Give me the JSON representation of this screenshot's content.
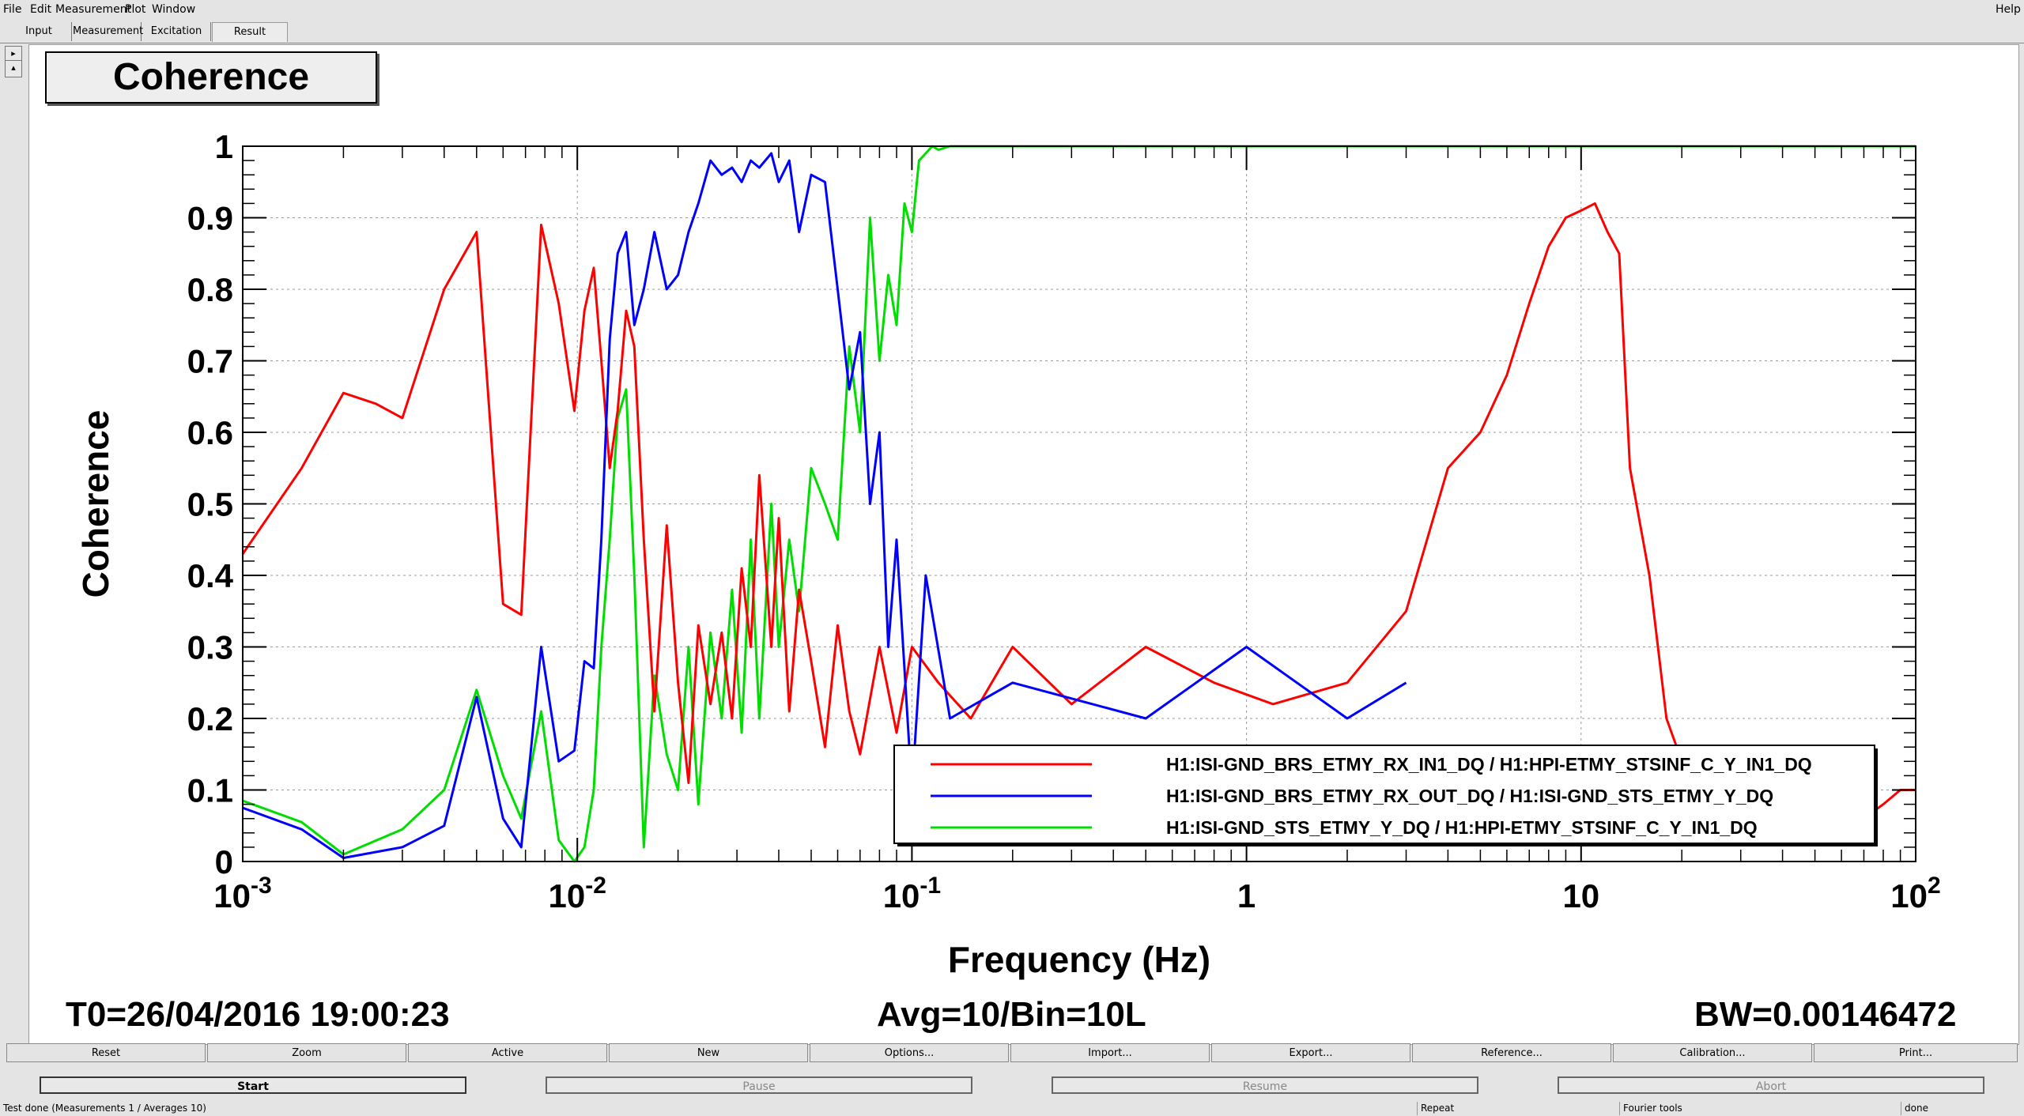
{
  "menu": {
    "file": "File",
    "edit": "Edit",
    "measurement": "Measurement",
    "plot": "Plot",
    "window": "Window",
    "help": "Help"
  },
  "tabs": [
    "Input",
    "Measurement",
    "Excitation",
    "Result"
  ],
  "left_buttons": [
    "▸",
    "▴"
  ],
  "plot_title": "Coherence",
  "chart_data": {
    "type": "line",
    "title": "Coherence",
    "xlabel": "Frequency (Hz)",
    "ylabel": "Coherence",
    "xscale": "log",
    "xlim": [
      0.001,
      100
    ],
    "ylim": [
      0,
      1
    ],
    "x_ticks": [
      {
        "value": 0.001,
        "base": "10",
        "exp": "-3"
      },
      {
        "value": 0.01,
        "base": "10",
        "exp": "-2"
      },
      {
        "value": 0.1,
        "base": "10",
        "exp": "-1"
      },
      {
        "value": 1,
        "base": "1",
        "exp": ""
      },
      {
        "value": 10,
        "base": "10",
        "exp": ""
      },
      {
        "value": 100,
        "base": "10",
        "exp": "2"
      }
    ],
    "y_ticks": [
      "0",
      "0.1",
      "0.2",
      "0.3",
      "0.4",
      "0.5",
      "0.6",
      "0.7",
      "0.8",
      "0.9",
      "1"
    ],
    "grid": true,
    "legend_position": "bottom-right",
    "series": [
      {
        "name": "H1:ISI-GND_BRS_ETMY_RX_IN1_DQ / H1:HPI-ETMY_STSINF_C_Y_IN1_DQ",
        "color": "#ff0000",
        "x": [
          0.001,
          0.0015,
          0.002,
          0.0025,
          0.003,
          0.004,
          0.005,
          0.006,
          0.0068,
          0.0078,
          0.0088,
          0.0098,
          0.0105,
          0.0112,
          0.0118,
          0.0125,
          0.0132,
          0.014,
          0.0148,
          0.0158,
          0.017,
          0.0185,
          0.02,
          0.0215,
          0.023,
          0.025,
          0.027,
          0.029,
          0.031,
          0.033,
          0.035,
          0.038,
          0.04,
          0.043,
          0.046,
          0.05,
          0.055,
          0.06,
          0.065,
          0.07,
          0.08,
          0.09,
          0.1,
          0.12,
          0.15,
          0.2,
          0.3,
          0.5,
          0.8,
          1.2,
          2,
          3,
          4,
          5,
          6,
          7,
          8,
          9,
          10,
          11,
          12,
          13,
          14,
          16,
          18,
          20,
          25,
          30,
          35,
          40,
          50,
          60,
          70,
          80,
          90,
          100
        ],
        "y": [
          0.43,
          0.55,
          0.655,
          0.64,
          0.62,
          0.8,
          0.88,
          0.36,
          0.345,
          0.89,
          0.78,
          0.63,
          0.77,
          0.83,
          0.7,
          0.55,
          0.63,
          0.77,
          0.72,
          0.45,
          0.21,
          0.47,
          0.25,
          0.11,
          0.33,
          0.22,
          0.32,
          0.2,
          0.41,
          0.3,
          0.54,
          0.3,
          0.48,
          0.21,
          0.38,
          0.28,
          0.16,
          0.33,
          0.21,
          0.15,
          0.3,
          0.18,
          0.3,
          0.25,
          0.2,
          0.3,
          0.22,
          0.3,
          0.25,
          0.22,
          0.25,
          0.35,
          0.55,
          0.6,
          0.68,
          0.78,
          0.86,
          0.9,
          0.91,
          0.92,
          0.88,
          0.85,
          0.55,
          0.4,
          0.2,
          0.14,
          0.08,
          0.08,
          0.05,
          0.04,
          0.05,
          0.05,
          0.06,
          0.08,
          0.1,
          0.1
        ]
      },
      {
        "name": "H1:ISI-GND_BRS_ETMY_RX_OUT_DQ / H1:ISI-GND_STS_ETMY_Y_DQ",
        "color": "#0000ff",
        "x": [
          0.001,
          0.0015,
          0.002,
          0.003,
          0.004,
          0.005,
          0.006,
          0.0068,
          0.0078,
          0.0088,
          0.0098,
          0.0105,
          0.0112,
          0.0118,
          0.0125,
          0.0132,
          0.014,
          0.0148,
          0.0158,
          0.017,
          0.0185,
          0.02,
          0.0215,
          0.023,
          0.025,
          0.027,
          0.029,
          0.031,
          0.033,
          0.035,
          0.038,
          0.04,
          0.043,
          0.046,
          0.05,
          0.055,
          0.06,
          0.065,
          0.07,
          0.075,
          0.08,
          0.085,
          0.09,
          0.1,
          0.11,
          0.13,
          0.2,
          0.5,
          1,
          2,
          3
        ],
        "y": [
          0.075,
          0.045,
          0.005,
          0.02,
          0.05,
          0.23,
          0.06,
          0.02,
          0.3,
          0.14,
          0.155,
          0.28,
          0.27,
          0.45,
          0.73,
          0.85,
          0.88,
          0.75,
          0.8,
          0.88,
          0.8,
          0.82,
          0.88,
          0.92,
          0.98,
          0.96,
          0.97,
          0.95,
          0.98,
          0.97,
          0.99,
          0.95,
          0.98,
          0.88,
          0.96,
          0.95,
          0.8,
          0.66,
          0.74,
          0.5,
          0.6,
          0.3,
          0.45,
          0.1,
          0.4,
          0.2,
          0.25,
          0.2,
          0.3,
          0.2,
          0.25
        ]
      },
      {
        "name": "H1:ISI-GND_STS_ETMY_Y_DQ / H1:HPI-ETMY_STSINF_C_Y_IN1_DQ",
        "color": "#00dd00",
        "x": [
          0.001,
          0.0015,
          0.002,
          0.003,
          0.004,
          0.005,
          0.006,
          0.0068,
          0.0078,
          0.0088,
          0.0098,
          0.0105,
          0.0112,
          0.0118,
          0.0125,
          0.0132,
          0.014,
          0.0148,
          0.0158,
          0.017,
          0.0185,
          0.02,
          0.0215,
          0.023,
          0.025,
          0.027,
          0.029,
          0.031,
          0.033,
          0.035,
          0.038,
          0.04,
          0.043,
          0.046,
          0.05,
          0.055,
          0.06,
          0.065,
          0.07,
          0.075,
          0.08,
          0.085,
          0.09,
          0.095,
          0.1,
          0.105,
          0.11,
          0.115,
          0.12,
          0.13,
          0.15,
          0.2,
          0.3,
          0.5,
          1,
          2,
          5,
          10,
          20,
          50,
          100
        ],
        "y": [
          0.085,
          0.055,
          0.01,
          0.045,
          0.1,
          0.24,
          0.12,
          0.06,
          0.21,
          0.03,
          0.0,
          0.02,
          0.1,
          0.3,
          0.45,
          0.62,
          0.66,
          0.4,
          0.02,
          0.26,
          0.15,
          0.1,
          0.3,
          0.08,
          0.32,
          0.2,
          0.38,
          0.18,
          0.45,
          0.2,
          0.5,
          0.3,
          0.45,
          0.35,
          0.55,
          0.5,
          0.45,
          0.72,
          0.6,
          0.9,
          0.7,
          0.82,
          0.75,
          0.92,
          0.88,
          0.98,
          0.99,
          1.0,
          0.995,
          1.0,
          1.0,
          1.0,
          1.0,
          1.0,
          1.0,
          1.0,
          1.0,
          1.0,
          1.0,
          1.0,
          1.0
        ]
      }
    ]
  },
  "footer": {
    "t0": "T0=26/04/2016 19:00:23",
    "avg": "Avg=10/Bin=10L",
    "bw": "BW=0.00146472"
  },
  "toolbar": [
    "Reset",
    "Zoom",
    "Active",
    "New",
    "Options...",
    "Import...",
    "Export...",
    "Reference...",
    "Calibration...",
    "Print..."
  ],
  "controls": {
    "start": "Start",
    "pause": "Pause",
    "resume": "Resume",
    "abort": "Abort"
  },
  "status": {
    "message": "Test done (Measurements 1 / Averages 10)",
    "repeat": "Repeat",
    "fourier": "Fourier tools",
    "done": "done"
  }
}
